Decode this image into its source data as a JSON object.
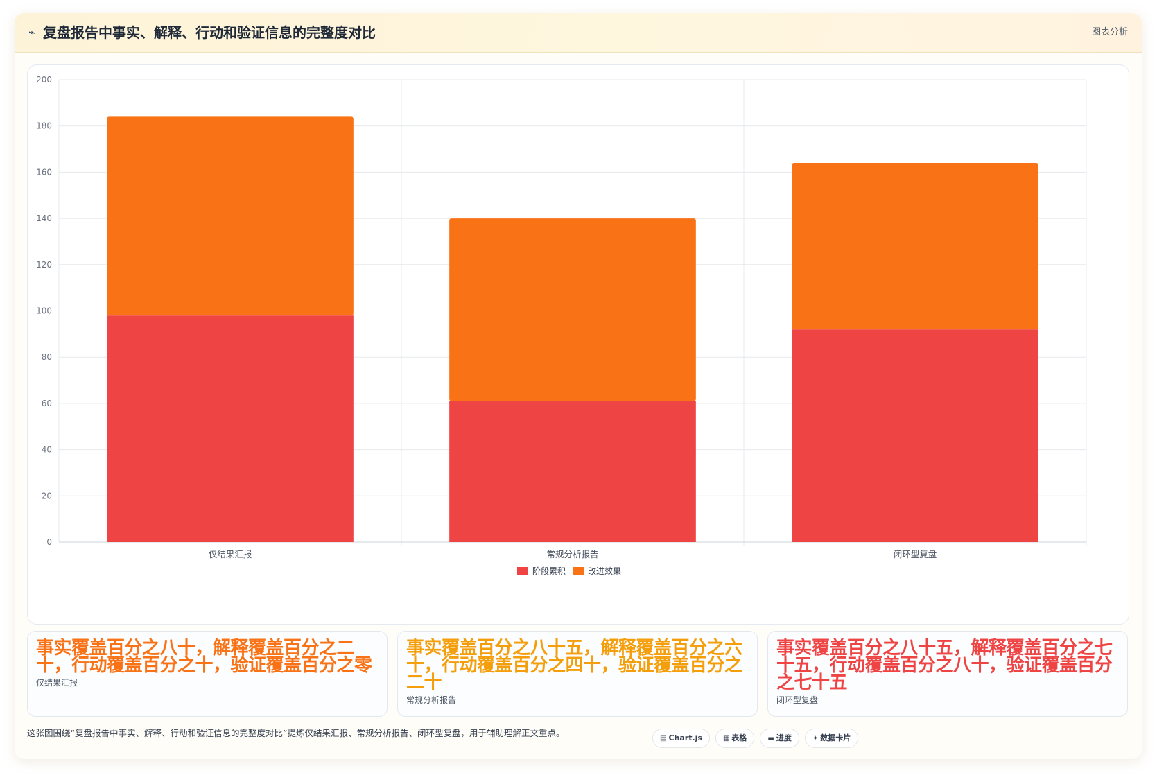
{
  "header": {
    "icon": "chart-line-icon",
    "title": "复盘报告中事实、解释、行动和验证信息的完整度对比",
    "tag": "图表分析"
  },
  "chart_data": {
    "type": "bar",
    "stacked": true,
    "title": "",
    "xlabel": "",
    "ylabel": "",
    "categories": [
      "仅结果汇报",
      "常规分析报告",
      "闭环型复盘"
    ],
    "series": [
      {
        "name": "阶段累积",
        "color": "#ef4444",
        "values": [
          98,
          61,
          92
        ]
      },
      {
        "name": "改进效果",
        "color": "#f97316",
        "values": [
          86,
          79,
          72
        ]
      }
    ],
    "ylim": [
      0,
      200
    ],
    "yticks": [
      0,
      20,
      40,
      60,
      80,
      100,
      120,
      140,
      160,
      180,
      200
    ],
    "grid": true,
    "legend_position": "bottom"
  },
  "stats": [
    {
      "value": "事实覆盖百分之八十，解释覆盖百分之二十，行动覆盖百分之十，验证覆盖百分之零",
      "label": "仅结果汇报",
      "color": "#f97316"
    },
    {
      "value": "事实覆盖百分之八十五，解释覆盖百分之六十，行动覆盖百分之四十，验证覆盖百分之二十",
      "label": "常规分析报告",
      "color": "#f59e0b"
    },
    {
      "value": "事实覆盖百分之八十五，解释覆盖百分之七十五，行动覆盖百分之八十，验证覆盖百分之七十五",
      "label": "闭环型复盘",
      "color": "#ef4444"
    }
  ],
  "footer": {
    "note": "这张图围绕“复盘报告中事实、解释、行动和验证信息的完整度对比”提炼仅结果汇报、常规分析报告、闭环型复盘，用于辅助理解正文重点。",
    "chips": [
      {
        "icon": "chart-icon",
        "glyph": "▤",
        "label": "Chart.js"
      },
      {
        "icon": "table-icon",
        "glyph": "▦",
        "label": "表格"
      },
      {
        "icon": "progress-icon",
        "glyph": "▬",
        "label": "进度"
      },
      {
        "icon": "sparkle-icon",
        "glyph": "✦",
        "label": "数据卡片"
      }
    ]
  }
}
